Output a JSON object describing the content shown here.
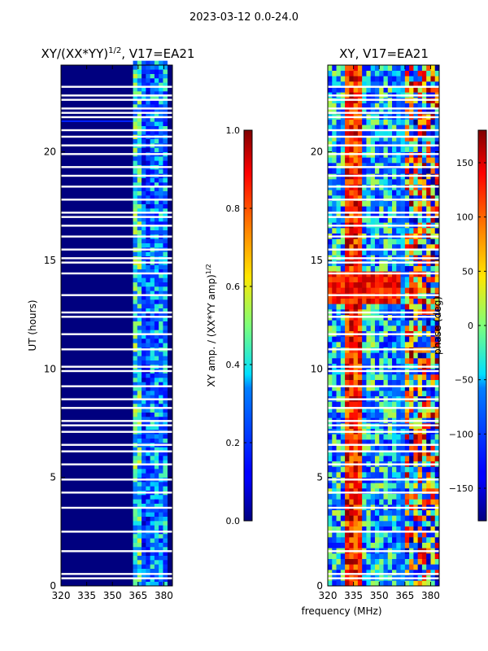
{
  "figure": {
    "suptitle": "2023-03-12 0.0-24.0",
    "colors": {
      "frame": "#000000",
      "background": "#ffffff",
      "blank": "#ffffff"
    }
  },
  "chart_data": [
    {
      "type": "heatmap",
      "id": "amp",
      "title_prefix": "XY/(XX*YY)",
      "title_sup": "1/2",
      "title_suffix": ", V17=EA21",
      "xlabel": "",
      "ylabel": "UT (hours)",
      "xlim": [
        320,
        385
      ],
      "ylim": [
        0,
        24
      ],
      "xticks": [
        320,
        335,
        350,
        365,
        380
      ],
      "yticks": [
        0,
        5,
        10,
        15,
        20
      ],
      "colorbar": {
        "label_prefix": "XY amp. / (XX*YY amp)",
        "label_sup": "1/2",
        "range": [
          0.0,
          1.0
        ],
        "ticks": [
          "0.0",
          "0.2",
          "0.4",
          "0.6",
          "0.8",
          "1.0"
        ],
        "tick_values": [
          0.0,
          0.2,
          0.4,
          0.6,
          0.8,
          1.0
        ],
        "colormap": "jet"
      },
      "description": "Normalized XY amplitude vs frequency and UT; mostly ~0 below 362 MHz, elevated (~0.2-0.5) between 362-382 MHz; a weak horizontal streak near 21.4 h."
    },
    {
      "type": "heatmap",
      "id": "phase",
      "title": "XY, V17=EA21",
      "xlabel": "frequency (MHz)",
      "ylabel": "",
      "xlim": [
        320,
        385
      ],
      "ylim": [
        0,
        24
      ],
      "xticks": [
        320,
        335,
        350,
        365,
        380
      ],
      "yticks": [
        0,
        5,
        10,
        15,
        20
      ],
      "colorbar": {
        "label": "phase (deg)",
        "range": [
          -180,
          180
        ],
        "ticks": [
          "150",
          "100",
          "50",
          "0",
          "−50",
          "−100",
          "−150"
        ],
        "tick_values": [
          150,
          100,
          50,
          0,
          -50,
          -100,
          -150
        ],
        "colormap": "jet"
      },
      "description": "XY phase vs frequency and UT; noisy phase with a strong red/dark-red band near 330-338 MHz and structured features 360-385 MHz; red block around 13-14 h."
    }
  ],
  "flagged_rows_hours": [
    0.35,
    0.55,
    1.6,
    2.5,
    3.6,
    4.3,
    4.9,
    5.6,
    6.2,
    6.5,
    7.1,
    7.4,
    7.6,
    8.2,
    8.6,
    9.2,
    9.9,
    10.1,
    10.9,
    11.6,
    12.4,
    12.6,
    13.4,
    14.4,
    14.9,
    15.1,
    15.5,
    16.1,
    16.6,
    17.0,
    17.2,
    17.8,
    18.4,
    18.9,
    19.3,
    19.9,
    20.3,
    20.7,
    21.0,
    21.6,
    21.8,
    22.0,
    22.4,
    22.6,
    23.0
  ]
}
